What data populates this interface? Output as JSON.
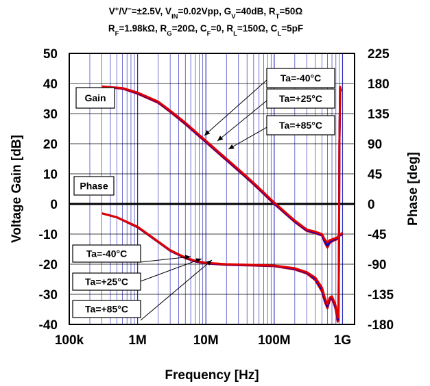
{
  "title": {
    "line1": [
      {
        "t": "V"
      },
      {
        "t": "+",
        "sup": true
      },
      {
        "t": "/V"
      },
      {
        "t": "−",
        "sup": true
      },
      {
        "t": "=±2.5V, V"
      },
      {
        "t": "IN",
        "sub": true
      },
      {
        "t": "=0.02Vpp, G"
      },
      {
        "t": "V",
        "sub": true
      },
      {
        "t": "=40dB, R"
      },
      {
        "t": "T",
        "sub": true
      },
      {
        "t": "=50Ω"
      }
    ],
    "line2": [
      {
        "t": "R"
      },
      {
        "t": "F",
        "sub": true
      },
      {
        "t": "=1.98kΩ, R"
      },
      {
        "t": "G",
        "sub": true
      },
      {
        "t": "=20Ω, C"
      },
      {
        "t": "F",
        "sub": true
      },
      {
        "t": "=0, R"
      },
      {
        "t": "L",
        "sub": true
      },
      {
        "t": "=150Ω, C"
      },
      {
        "t": "L",
        "sub": true
      },
      {
        "t": "=5pF"
      }
    ]
  },
  "colors": {
    "series_-40": "#e00000",
    "series_+25": "#0000c8",
    "series_+85": "#e00000",
    "grid": "#3030c0",
    "zero_line": "#000000"
  },
  "chart_data": {
    "type": "line",
    "xlabel": "Frequency [Hz]",
    "ylabel": "Voltage Gain [dB]",
    "y2label": "Phase [deg]",
    "x_scale": "log",
    "xlim": [
      100000,
      1500000000
    ],
    "ylim": [
      -40,
      50
    ],
    "y2lim": [
      -180,
      225
    ],
    "x_ticks": [
      100000,
      1000000,
      10000000,
      100000000,
      1000000000
    ],
    "x_tick_labels": [
      "100k",
      "1M",
      "10M",
      "100M",
      "1G"
    ],
    "y_ticks": [
      -40,
      -30,
      -20,
      -10,
      0,
      10,
      20,
      30,
      40,
      50
    ],
    "y_tick_labels": [
      "-40",
      "-30",
      "-20",
      "-10",
      "0",
      "10",
      "20",
      "30",
      "40",
      "50"
    ],
    "y2_ticks": [
      -180,
      -135,
      -90,
      -45,
      0,
      45,
      90,
      135,
      180,
      225
    ],
    "y2_tick_labels": [
      "-180",
      "-135",
      "-90",
      "-45",
      "0",
      "45",
      "90",
      "135",
      "180",
      "225"
    ],
    "grid": true,
    "gain_series": [
      {
        "name": "Ta=-40°C",
        "axis": "left",
        "x": [
          300000,
          600000,
          1000000,
          2000000,
          3000000,
          5000000,
          10000000,
          20000000,
          30000000,
          50000000,
          100000000,
          200000000,
          300000000,
          400000000,
          500000000,
          550000000,
          600000000,
          650000000,
          700000000,
          750000000,
          800000000,
          850000000,
          870000000,
          900000000,
          950000000,
          1000000000
        ],
        "y": [
          39,
          38.5,
          37,
          34,
          31,
          27,
          21,
          15,
          11.5,
          7,
          0.5,
          -5.5,
          -8.5,
          -9.2,
          -10,
          -11.8,
          -12.8,
          -12,
          -11.8,
          -11.5,
          -11.3,
          -11,
          -10.6,
          -10,
          -10,
          -9.5
        ]
      },
      {
        "name": "Ta=+25°C",
        "axis": "left",
        "x": [
          300000,
          600000,
          1000000,
          2000000,
          3000000,
          5000000,
          10000000,
          20000000,
          30000000,
          50000000,
          100000000,
          200000000,
          300000000,
          400000000,
          500000000,
          550000000,
          600000000,
          650000000,
          700000000,
          750000000,
          800000000,
          850000000,
          870000000,
          900000000,
          950000000,
          1000000000
        ],
        "y": [
          38.9,
          38.4,
          36.8,
          33.8,
          30.8,
          26.7,
          20.7,
          14.7,
          11.2,
          6.7,
          0.2,
          -5.8,
          -8.8,
          -9.5,
          -10.3,
          -12.4,
          -13.8,
          -12.6,
          -12.2,
          -11.8,
          -11.6,
          -11.3,
          -10.9,
          -10.3,
          -10.2,
          -9.7
        ]
      },
      {
        "name": "Ta=+85°C",
        "axis": "left",
        "x": [
          300000,
          600000,
          1000000,
          2000000,
          3000000,
          5000000,
          10000000,
          20000000,
          30000000,
          50000000,
          100000000,
          200000000,
          300000000,
          400000000,
          500000000,
          550000000,
          600000000,
          650000000,
          700000000,
          750000000,
          800000000,
          850000000,
          870000000,
          900000000,
          950000000,
          1000000000
        ],
        "y": [
          38.8,
          38.3,
          36.6,
          33.6,
          30.6,
          26.5,
          20.5,
          14.5,
          11,
          6.5,
          0,
          -6,
          -9,
          -9.7,
          -10.5,
          -12.8,
          -14.5,
          -13,
          -12.5,
          -12.1,
          -11.9,
          -11.5,
          -11.1,
          -10.5,
          -10.4,
          -9.9
        ]
      }
    ],
    "phase_series": [
      {
        "name": "Ta=-40°C",
        "axis": "right",
        "x": [
          300000,
          500000,
          1000000,
          2000000,
          3000000,
          5000000,
          7000000,
          10000000,
          20000000,
          50000000,
          100000000,
          200000000,
          300000000,
          400000000,
          500000000,
          550000000,
          600000000,
          650000000,
          700000000,
          750000000,
          800000000,
          830000000,
          850000000,
          870000000,
          880000000,
          890000000,
          900000000,
          920000000,
          950000000
        ],
        "y": [
          -14,
          -20,
          -34,
          -56,
          -69,
          -80,
          -85,
          -88,
          -90,
          -91,
          -92,
          -96,
          -102,
          -110,
          -125,
          -140,
          -150,
          -140,
          -138,
          -145,
          -153,
          -163,
          -170,
          -170,
          -130,
          -40,
          90,
          175,
          170
        ]
      },
      {
        "name": "Ta=+25°C",
        "axis": "right",
        "x": [
          300000,
          500000,
          1000000,
          2000000,
          3000000,
          5000000,
          7000000,
          10000000,
          20000000,
          50000000,
          100000000,
          200000000,
          300000000,
          400000000,
          500000000,
          550000000,
          600000000,
          650000000,
          700000000,
          750000000,
          800000000,
          830000000,
          850000000,
          870000000,
          880000000,
          890000000,
          900000000,
          920000000,
          950000000
        ],
        "y": [
          -14,
          -20,
          -34.5,
          -56.5,
          -69.5,
          -80.5,
          -85.5,
          -88.5,
          -90.5,
          -91.5,
          -92.5,
          -97,
          -103,
          -112,
          -128,
          -143,
          -153,
          -142,
          -140,
          -147,
          -156,
          -166,
          -173,
          -172,
          -130,
          -40,
          90,
          174,
          169
        ]
      },
      {
        "name": "Ta=+85°C",
        "axis": "right",
        "x": [
          300000,
          500000,
          1000000,
          2000000,
          3000000,
          5000000,
          7000000,
          10000000,
          20000000,
          50000000,
          100000000,
          200000000,
          300000000,
          400000000,
          500000000,
          550000000,
          600000000,
          650000000,
          700000000,
          750000000,
          800000000,
          830000000,
          850000000,
          870000000,
          880000000,
          890000000,
          900000000,
          920000000,
          950000000
        ],
        "y": [
          -14,
          -20,
          -35,
          -57,
          -70,
          -81,
          -86,
          -89,
          -91,
          -92,
          -93,
          -98,
          -104,
          -114,
          -131,
          -146,
          -156,
          -144,
          -142,
          -149,
          -159,
          -170,
          -176,
          -174,
          -130,
          -40,
          90,
          173,
          168
        ]
      }
    ],
    "annotations": [
      {
        "text": "Gain",
        "kind": "label"
      },
      {
        "text": "Phase",
        "kind": "label"
      },
      {
        "text": "Ta=-40°C",
        "kind": "callout",
        "group": "gain"
      },
      {
        "text": "Ta=+25°C",
        "kind": "callout",
        "group": "gain"
      },
      {
        "text": "Ta=+85°C",
        "kind": "callout",
        "group": "gain"
      },
      {
        "text": "Ta=-40°C",
        "kind": "callout",
        "group": "phase"
      },
      {
        "text": "Ta=+25°C",
        "kind": "callout",
        "group": "phase"
      },
      {
        "text": "Ta=+85°C",
        "kind": "callout",
        "group": "phase"
      }
    ]
  }
}
